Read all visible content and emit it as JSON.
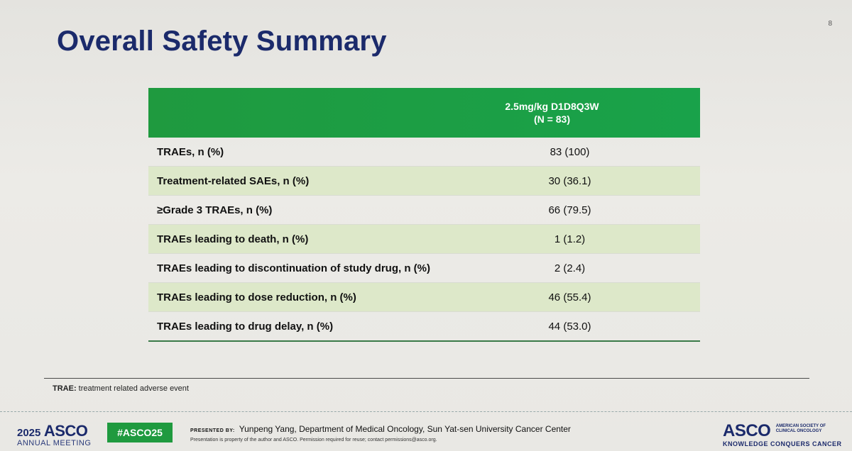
{
  "slide_number": "8",
  "title": "Overall Safety Summary",
  "table": {
    "column_header_line1": "2.5mg/kg D1D8Q3W",
    "column_header_line2": "(N = 83)",
    "rows": [
      {
        "label": "TRAEs, n (%)",
        "value": "83 (100)"
      },
      {
        "label": "Treatment-related SAEs, n (%)",
        "value": "30 (36.1)"
      },
      {
        "label": "≥Grade 3 TRAEs, n (%)",
        "value": "66 (79.5)"
      },
      {
        "label": "TRAEs leading to death, n (%)",
        "value": "1 (1.2)"
      },
      {
        "label": "TRAEs leading to discontinuation of study drug, n (%)",
        "value": "2 (2.4)"
      },
      {
        "label": "TRAEs leading to dose reduction, n (%)",
        "value": "46 (55.4)"
      },
      {
        "label": "TRAEs leading to drug delay, n (%)",
        "value": "44 (53.0)"
      }
    ]
  },
  "footnote": {
    "term": "TRAE:",
    "definition": " treatment related adverse event"
  },
  "footer": {
    "year": "2025",
    "brand": "ASCO",
    "meeting": "ANNUAL MEETING",
    "hashtag": "#ASCO25",
    "presented_by": "PRESENTED BY:",
    "presenter": "Yunpeng Yang, Department of Medical Oncology, Sun Yat-sen University Cancer Center",
    "permission": "Presentation is property of the author and ASCO. Permission required for reuse; contact permissions@asco.org.",
    "right_brand": "ASCO",
    "society_line1": "AMERICAN SOCIETY OF",
    "society_line2": "CLINICAL ONCOLOGY",
    "tagline": "KNOWLEDGE CONQUERS CANCER"
  },
  "colors": {
    "title": "#1b2a6b",
    "header_green": "#1f9a3f",
    "row_shade": "#dde8c9"
  }
}
